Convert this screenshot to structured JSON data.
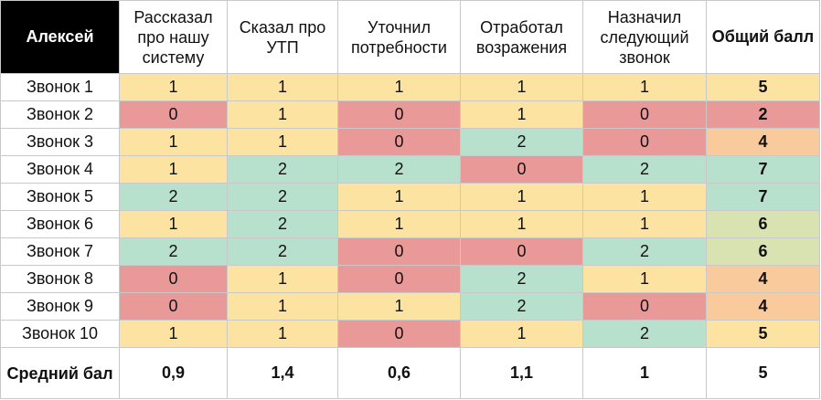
{
  "colors": {
    "yellow": "#fce3a1",
    "red": "#ea9999",
    "green": "#b7e1cd",
    "orange": "#f9cb9c",
    "lime": "#d9e3b1"
  },
  "header": {
    "name": "Алексей",
    "columns": [
      "Рассказал про нашу систему",
      "Сказал про УТП",
      "Уточнил потребности",
      "Отработал возражения",
      "Назначил следующий звонок"
    ],
    "total": "Общий балл"
  },
  "rows": [
    {
      "label": "Звонок 1",
      "scores": [
        "1",
        "1",
        "1",
        "1",
        "1"
      ],
      "colors": [
        "yellow",
        "yellow",
        "yellow",
        "yellow",
        "yellow"
      ],
      "total": "5",
      "total_color": "yellow"
    },
    {
      "label": "Звонок 2",
      "scores": [
        "0",
        "1",
        "0",
        "1",
        "0"
      ],
      "colors": [
        "red",
        "yellow",
        "red",
        "yellow",
        "red"
      ],
      "total": "2",
      "total_color": "red"
    },
    {
      "label": "Звонок 3",
      "scores": [
        "1",
        "1",
        "0",
        "2",
        "0"
      ],
      "colors": [
        "yellow",
        "yellow",
        "red",
        "green",
        "red"
      ],
      "total": "4",
      "total_color": "orange"
    },
    {
      "label": "Звонок 4",
      "scores": [
        "1",
        "2",
        "2",
        "0",
        "2"
      ],
      "colors": [
        "yellow",
        "green",
        "green",
        "red",
        "green"
      ],
      "total": "7",
      "total_color": "green"
    },
    {
      "label": "Звонок 5",
      "scores": [
        "2",
        "2",
        "1",
        "1",
        "1"
      ],
      "colors": [
        "green",
        "green",
        "yellow",
        "yellow",
        "yellow"
      ],
      "total": "7",
      "total_color": "green"
    },
    {
      "label": "Звонок 6",
      "scores": [
        "1",
        "2",
        "1",
        "1",
        "1"
      ],
      "colors": [
        "yellow",
        "green",
        "yellow",
        "yellow",
        "yellow"
      ],
      "total": "6",
      "total_color": "lime"
    },
    {
      "label": "Звонок 7",
      "scores": [
        "2",
        "2",
        "0",
        "0",
        "2"
      ],
      "colors": [
        "green",
        "green",
        "red",
        "red",
        "green"
      ],
      "total": "6",
      "total_color": "lime"
    },
    {
      "label": "Звонок 8",
      "scores": [
        "0",
        "1",
        "0",
        "2",
        "1"
      ],
      "colors": [
        "red",
        "yellow",
        "red",
        "green",
        "yellow"
      ],
      "total": "4",
      "total_color": "orange"
    },
    {
      "label": "Звонок 9",
      "scores": [
        "0",
        "1",
        "1",
        "2",
        "0"
      ],
      "colors": [
        "red",
        "yellow",
        "yellow",
        "green",
        "red"
      ],
      "total": "4",
      "total_color": "orange"
    },
    {
      "label": "Звонок 10",
      "scores": [
        "1",
        "1",
        "0",
        "1",
        "2"
      ],
      "colors": [
        "yellow",
        "yellow",
        "red",
        "yellow",
        "green"
      ],
      "total": "5",
      "total_color": "yellow"
    }
  ],
  "footer": {
    "label": "Средний бал",
    "values": [
      "0,9",
      "1,4",
      "0,6",
      "1,1",
      "1"
    ],
    "total": "5"
  }
}
